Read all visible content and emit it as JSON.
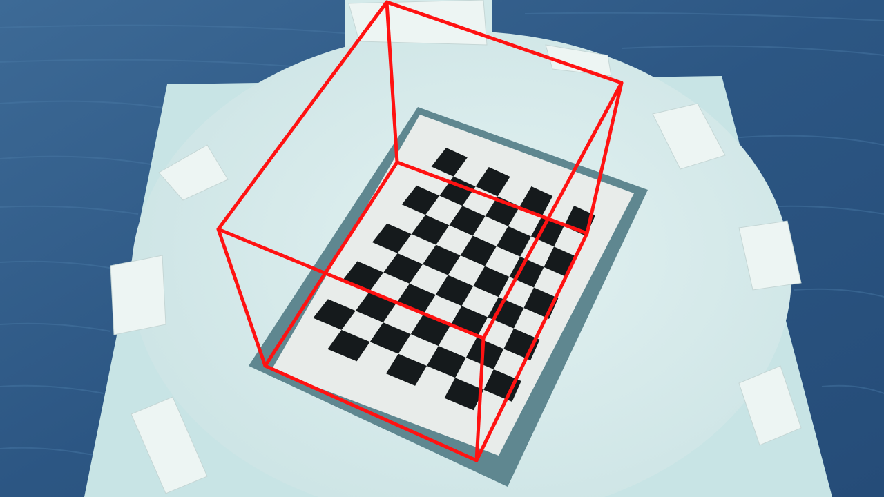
{
  "scene": {
    "colors": {
      "table": "#2f5b86",
      "board": "#c6e2e3",
      "plate": "#d8ecec",
      "tape": "#e9f3f1",
      "mat_border": "#5f8790",
      "paper": "#e8ecea",
      "checker_dark": "#151a1c",
      "overlay": "#ff1212"
    },
    "checkerboard": {
      "rows": 10,
      "cols": 7
    }
  }
}
